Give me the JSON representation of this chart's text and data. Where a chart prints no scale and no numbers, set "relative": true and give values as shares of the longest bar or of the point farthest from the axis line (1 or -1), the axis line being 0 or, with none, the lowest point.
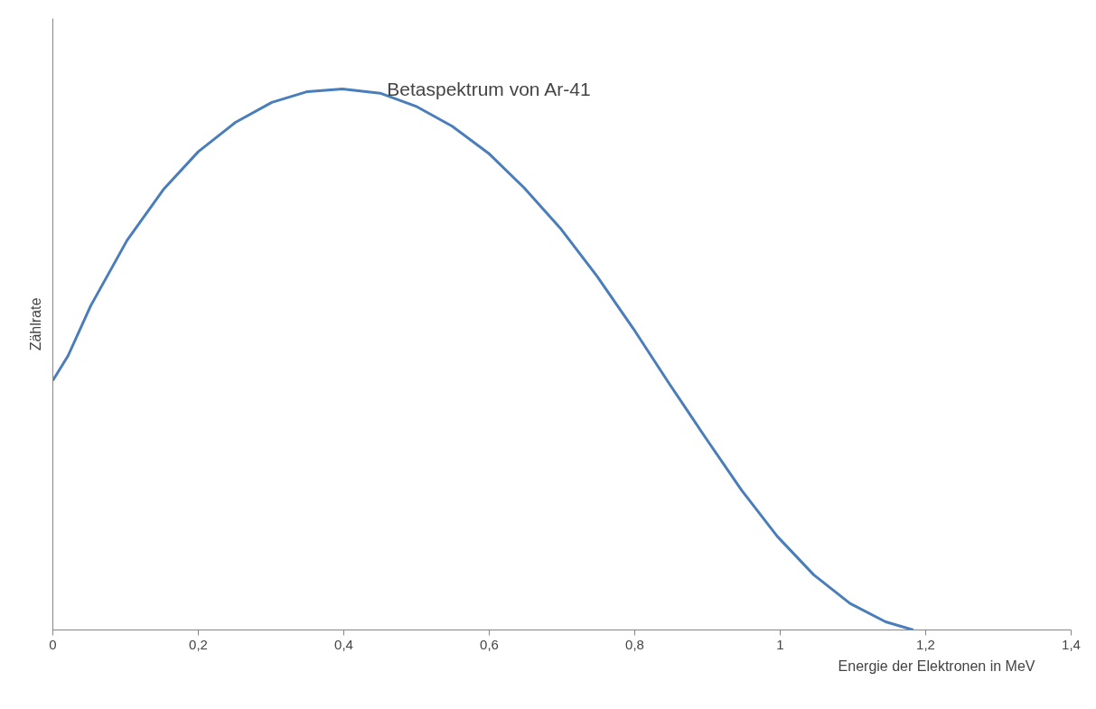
{
  "chart_data": {
    "type": "line",
    "title": "Betaspektrum von Ar-41",
    "xlabel": "Energie der Elektronen in MeV",
    "ylabel": "Zählrate",
    "relative": true,
    "grid": false,
    "tick_labels": "x",
    "marker": "none",
    "line_style": "solid",
    "xlim": [
      0,
      1.4
    ],
    "xticks": [
      0,
      {
        "value": 0.2,
        "label": "0,2"
      },
      {
        "value": 0.4,
        "label": "0,4"
      },
      {
        "value": 0.6,
        "label": "0,6"
      },
      {
        "value": 0.8,
        "label": "0,8"
      },
      1,
      {
        "value": 1.2,
        "label": "1,2"
      },
      {
        "value": 1.4,
        "label": "1,4"
      }
    ],
    "x": [
      0,
      0.021,
      0.052,
      0.102,
      0.152,
      0.2,
      0.251,
      0.301,
      0.35,
      0.398,
      0.45,
      0.499,
      0.549,
      0.599,
      0.648,
      0.698,
      0.748,
      0.798,
      0.847,
      0.897,
      0.947,
      0.996,
      1.046,
      1.096,
      1.145,
      1.183
    ],
    "series": [
      {
        "color": "#4a7ebb",
        "values": [
          0.461,
          0.507,
          0.599,
          0.72,
          0.814,
          0.884,
          0.938,
          0.975,
          0.995,
          1.0,
          0.992,
          0.968,
          0.931,
          0.881,
          0.817,
          0.742,
          0.654,
          0.557,
          0.456,
          0.356,
          0.258,
          0.173,
          0.102,
          0.049,
          0.015,
          0.0
        ]
      }
    ]
  }
}
